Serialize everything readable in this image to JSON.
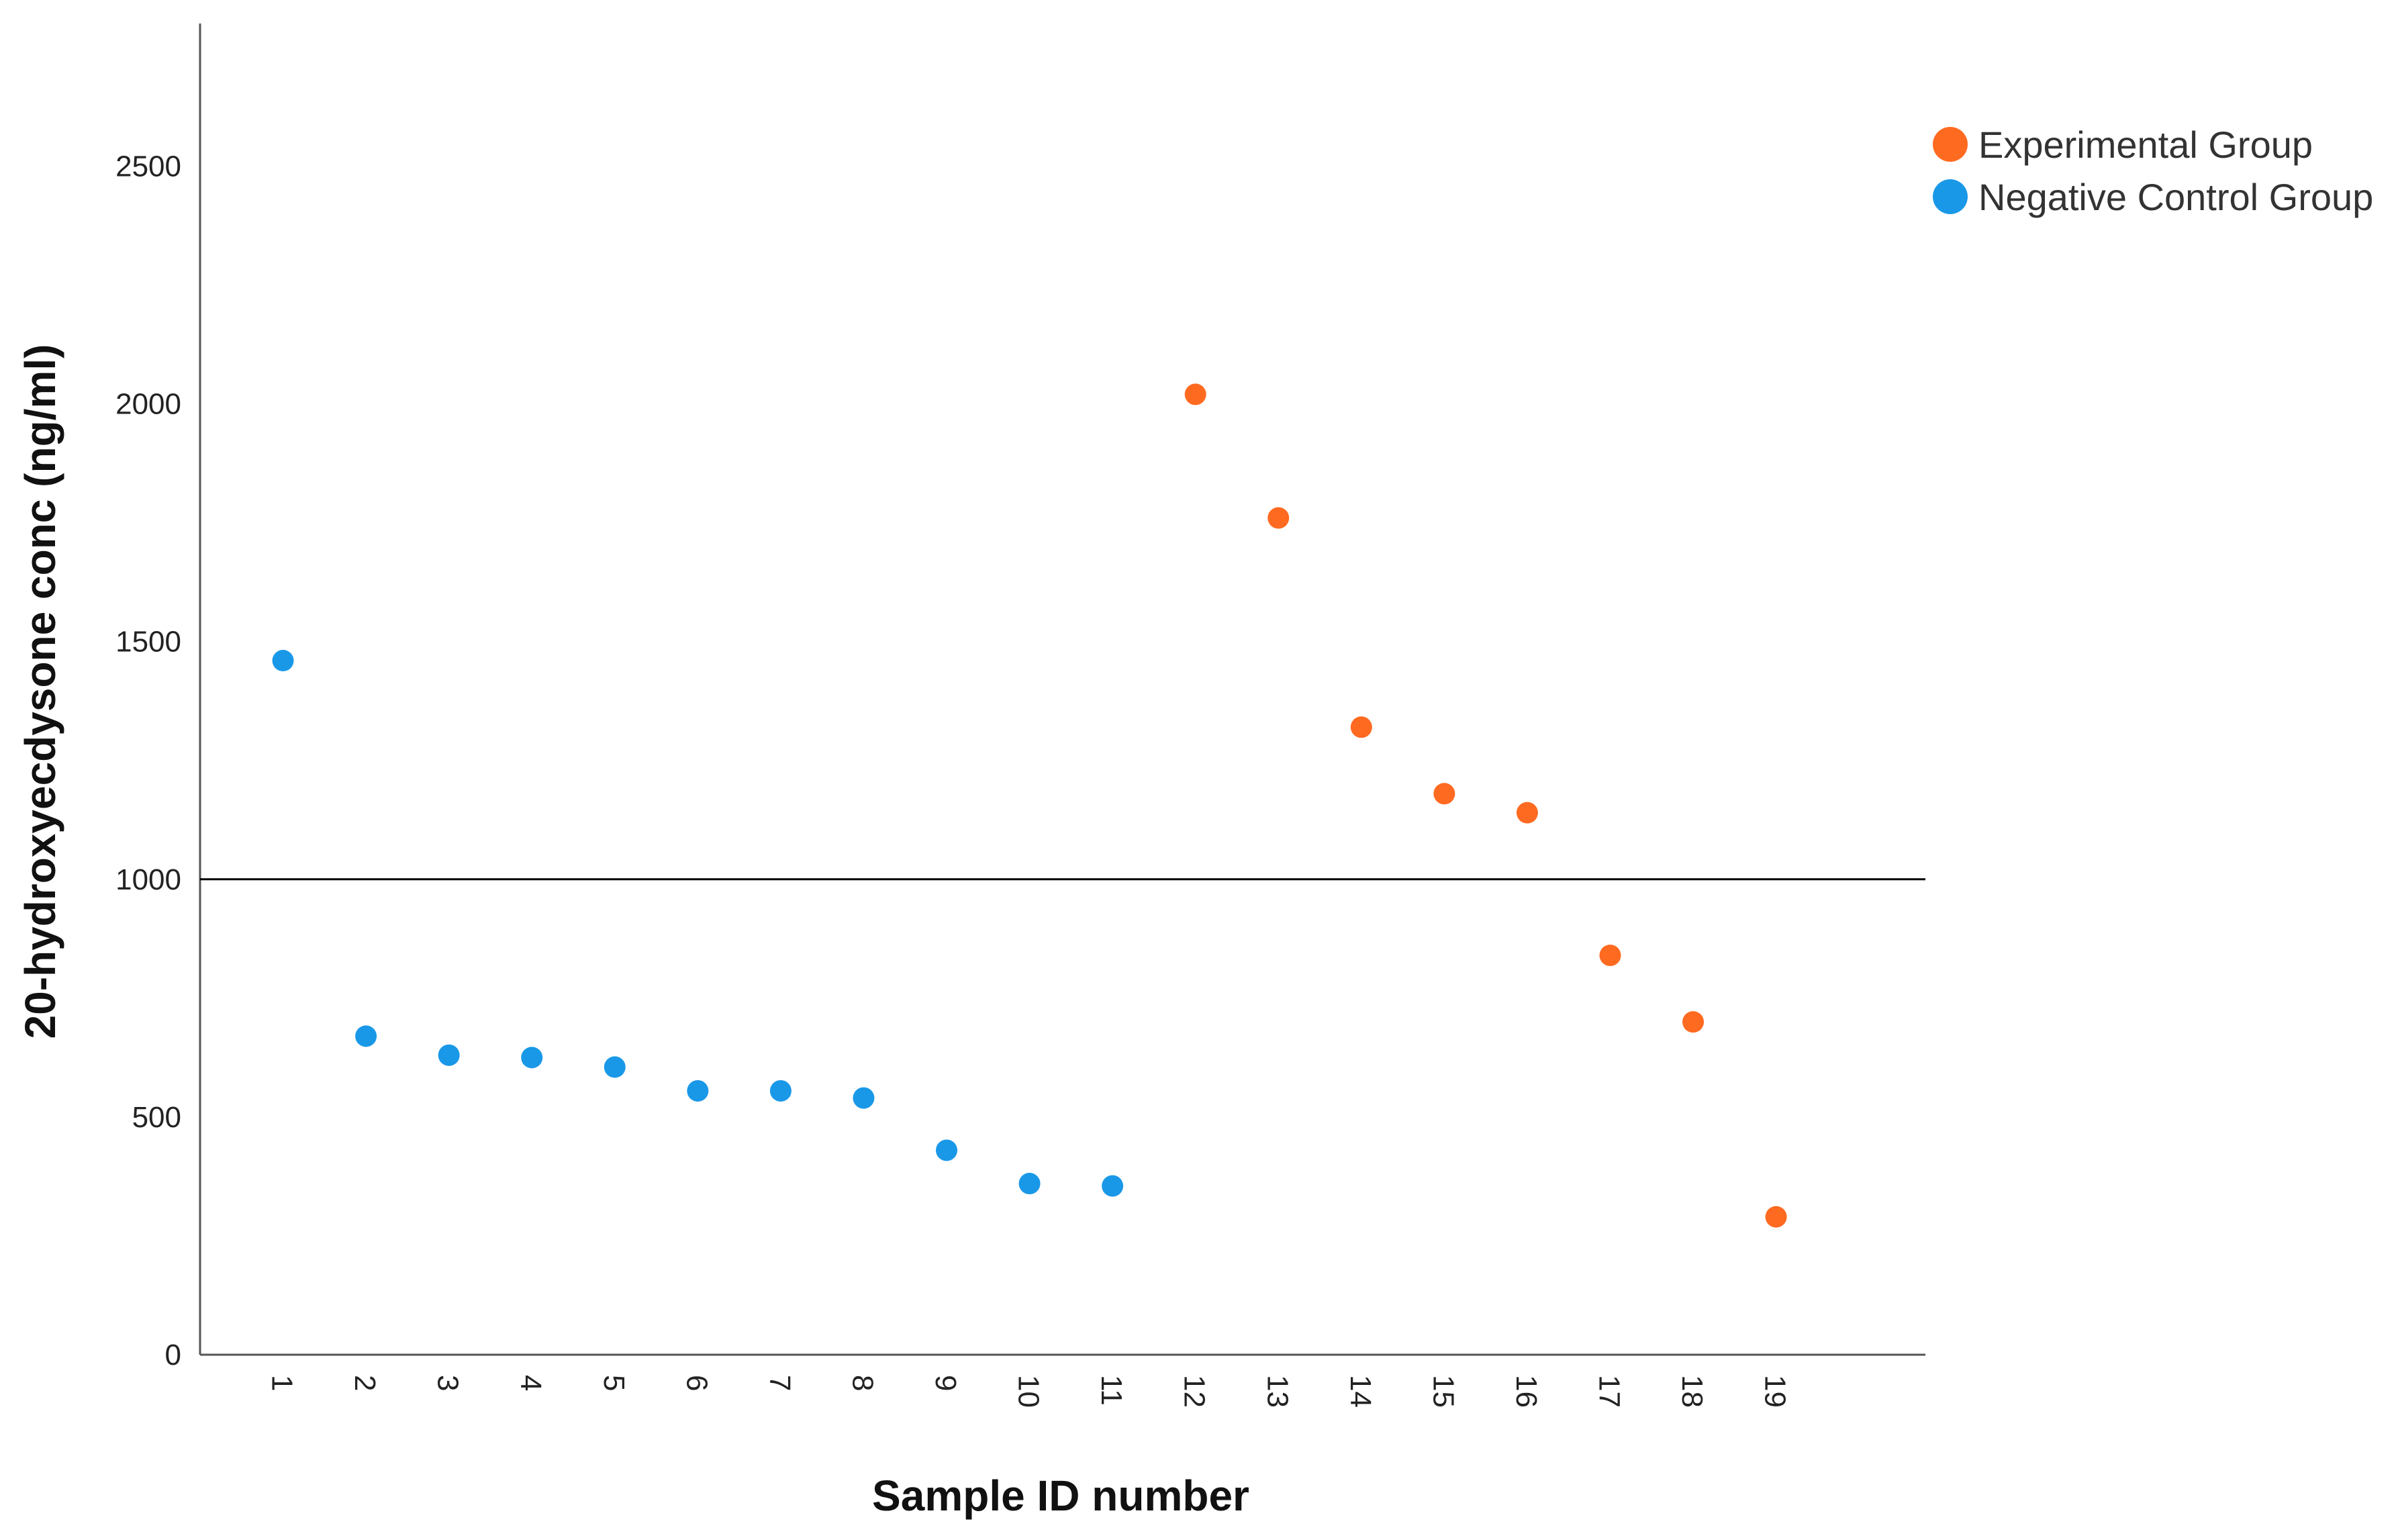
{
  "chart_data": {
    "type": "scatter",
    "title": "",
    "xlabel": "Sample ID number",
    "ylabel": "20-hydroxyecdysone conc (ng/ml)",
    "ylim": [
      0,
      2800
    ],
    "xlim": [
      0,
      20.8
    ],
    "y_ticks": [
      0,
      500,
      1000,
      1500,
      2000,
      2500
    ],
    "x_ticks": [
      "1",
      "2",
      "3",
      "4",
      "5",
      "6",
      "7",
      "8",
      "9",
      "10",
      "11",
      "12",
      "13",
      "14",
      "15",
      "16",
      "17",
      "18",
      "19"
    ],
    "x_tick_rotation": 90,
    "reference_line": {
      "y": 1000,
      "color": "#000000"
    },
    "grid": false,
    "legend_position": "top-right",
    "series": [
      {
        "name": "Experimental Group",
        "color": "#FF6A21",
        "points": [
          {
            "x": 12,
            "y": 2020
          },
          {
            "x": 13,
            "y": 1760
          },
          {
            "x": 14,
            "y": 1320
          },
          {
            "x": 15,
            "y": 1180
          },
          {
            "x": 16,
            "y": 1140
          },
          {
            "x": 17,
            "y": 840
          },
          {
            "x": 18,
            "y": 700
          },
          {
            "x": 19,
            "y": 290
          }
        ]
      },
      {
        "name": "Negative Control Group",
        "color": "#1A98E8",
        "points": [
          {
            "x": 1,
            "y": 1460
          },
          {
            "x": 2,
            "y": 670
          },
          {
            "x": 3,
            "y": 630
          },
          {
            "x": 4,
            "y": 625
          },
          {
            "x": 5,
            "y": 605
          },
          {
            "x": 6,
            "y": 555
          },
          {
            "x": 7,
            "y": 555
          },
          {
            "x": 8,
            "y": 540
          },
          {
            "x": 9,
            "y": 430
          },
          {
            "x": 10,
            "y": 360
          },
          {
            "x": 11,
            "y": 355
          }
        ]
      }
    ]
  }
}
